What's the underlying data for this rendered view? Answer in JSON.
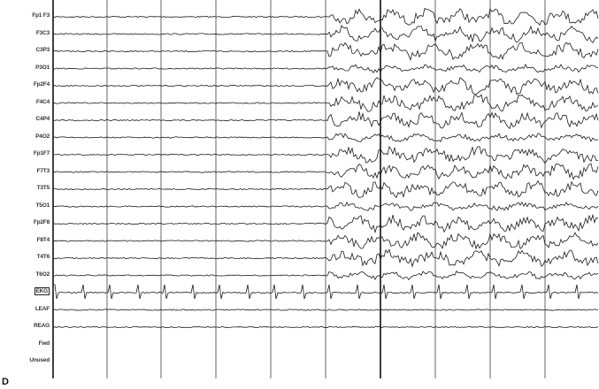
{
  "panel_label": "D",
  "channels": [
    "Fp1 F3",
    "F3C3",
    "C3P3",
    "P3O1",
    "Fp2F4",
    "F4C4",
    "C4P4",
    "P4O2",
    "Fp1F7",
    "F7T3",
    "T3T5",
    "T5O1",
    "Fp2F8",
    "F8T4",
    "T4T6",
    "T6O2",
    "EKG",
    "LEAF",
    "REAG",
    "Fwd",
    "Unused"
  ],
  "boxed_channel": "EKG",
  "colors": {
    "trace": "#1a1a1a",
    "grid": "#555555",
    "marker": "#000000"
  }
}
